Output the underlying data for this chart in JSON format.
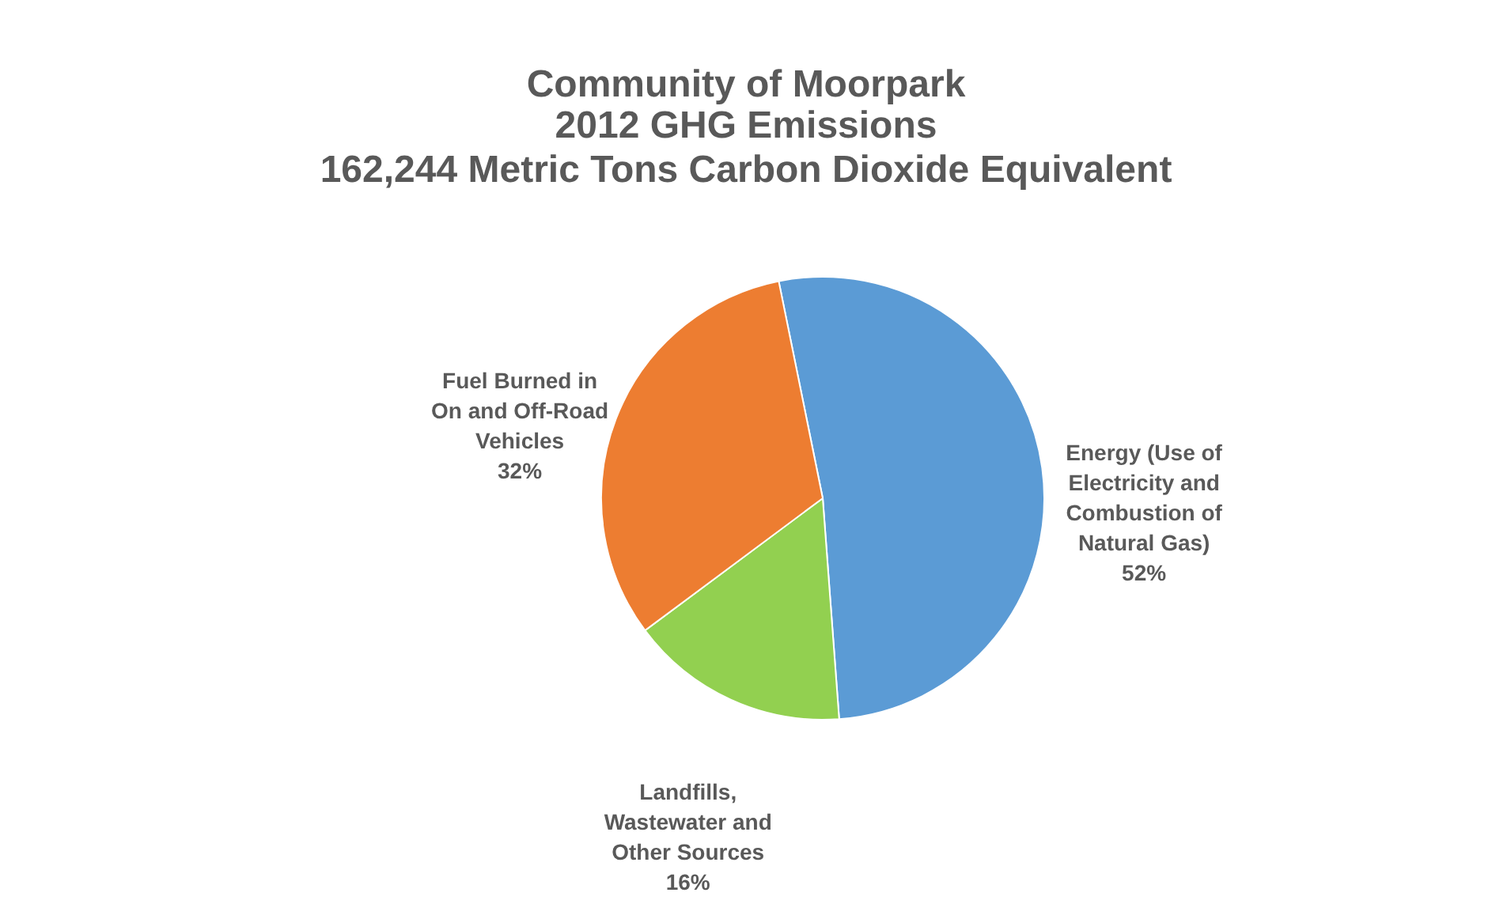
{
  "chart_data": {
    "type": "pie",
    "title": "Community of Moorpark 2012 GHG Emissions",
    "subtitle": "162,244 Metric Tons Carbon Dioxide Equivalent",
    "categories": [
      "Energy (Use of Electricity and Combustion of Natural Gas)",
      "Landfills, Wastewater and Other Sources",
      "Fuel Burned in On and Off-Road Vehicles"
    ],
    "values": [
      52,
      16,
      32
    ],
    "colors": [
      "#5b9bd5",
      "#92d050",
      "#ed7d31"
    ],
    "value_labels": [
      "52%",
      "16%",
      "32%"
    ],
    "legend": false
  }
}
